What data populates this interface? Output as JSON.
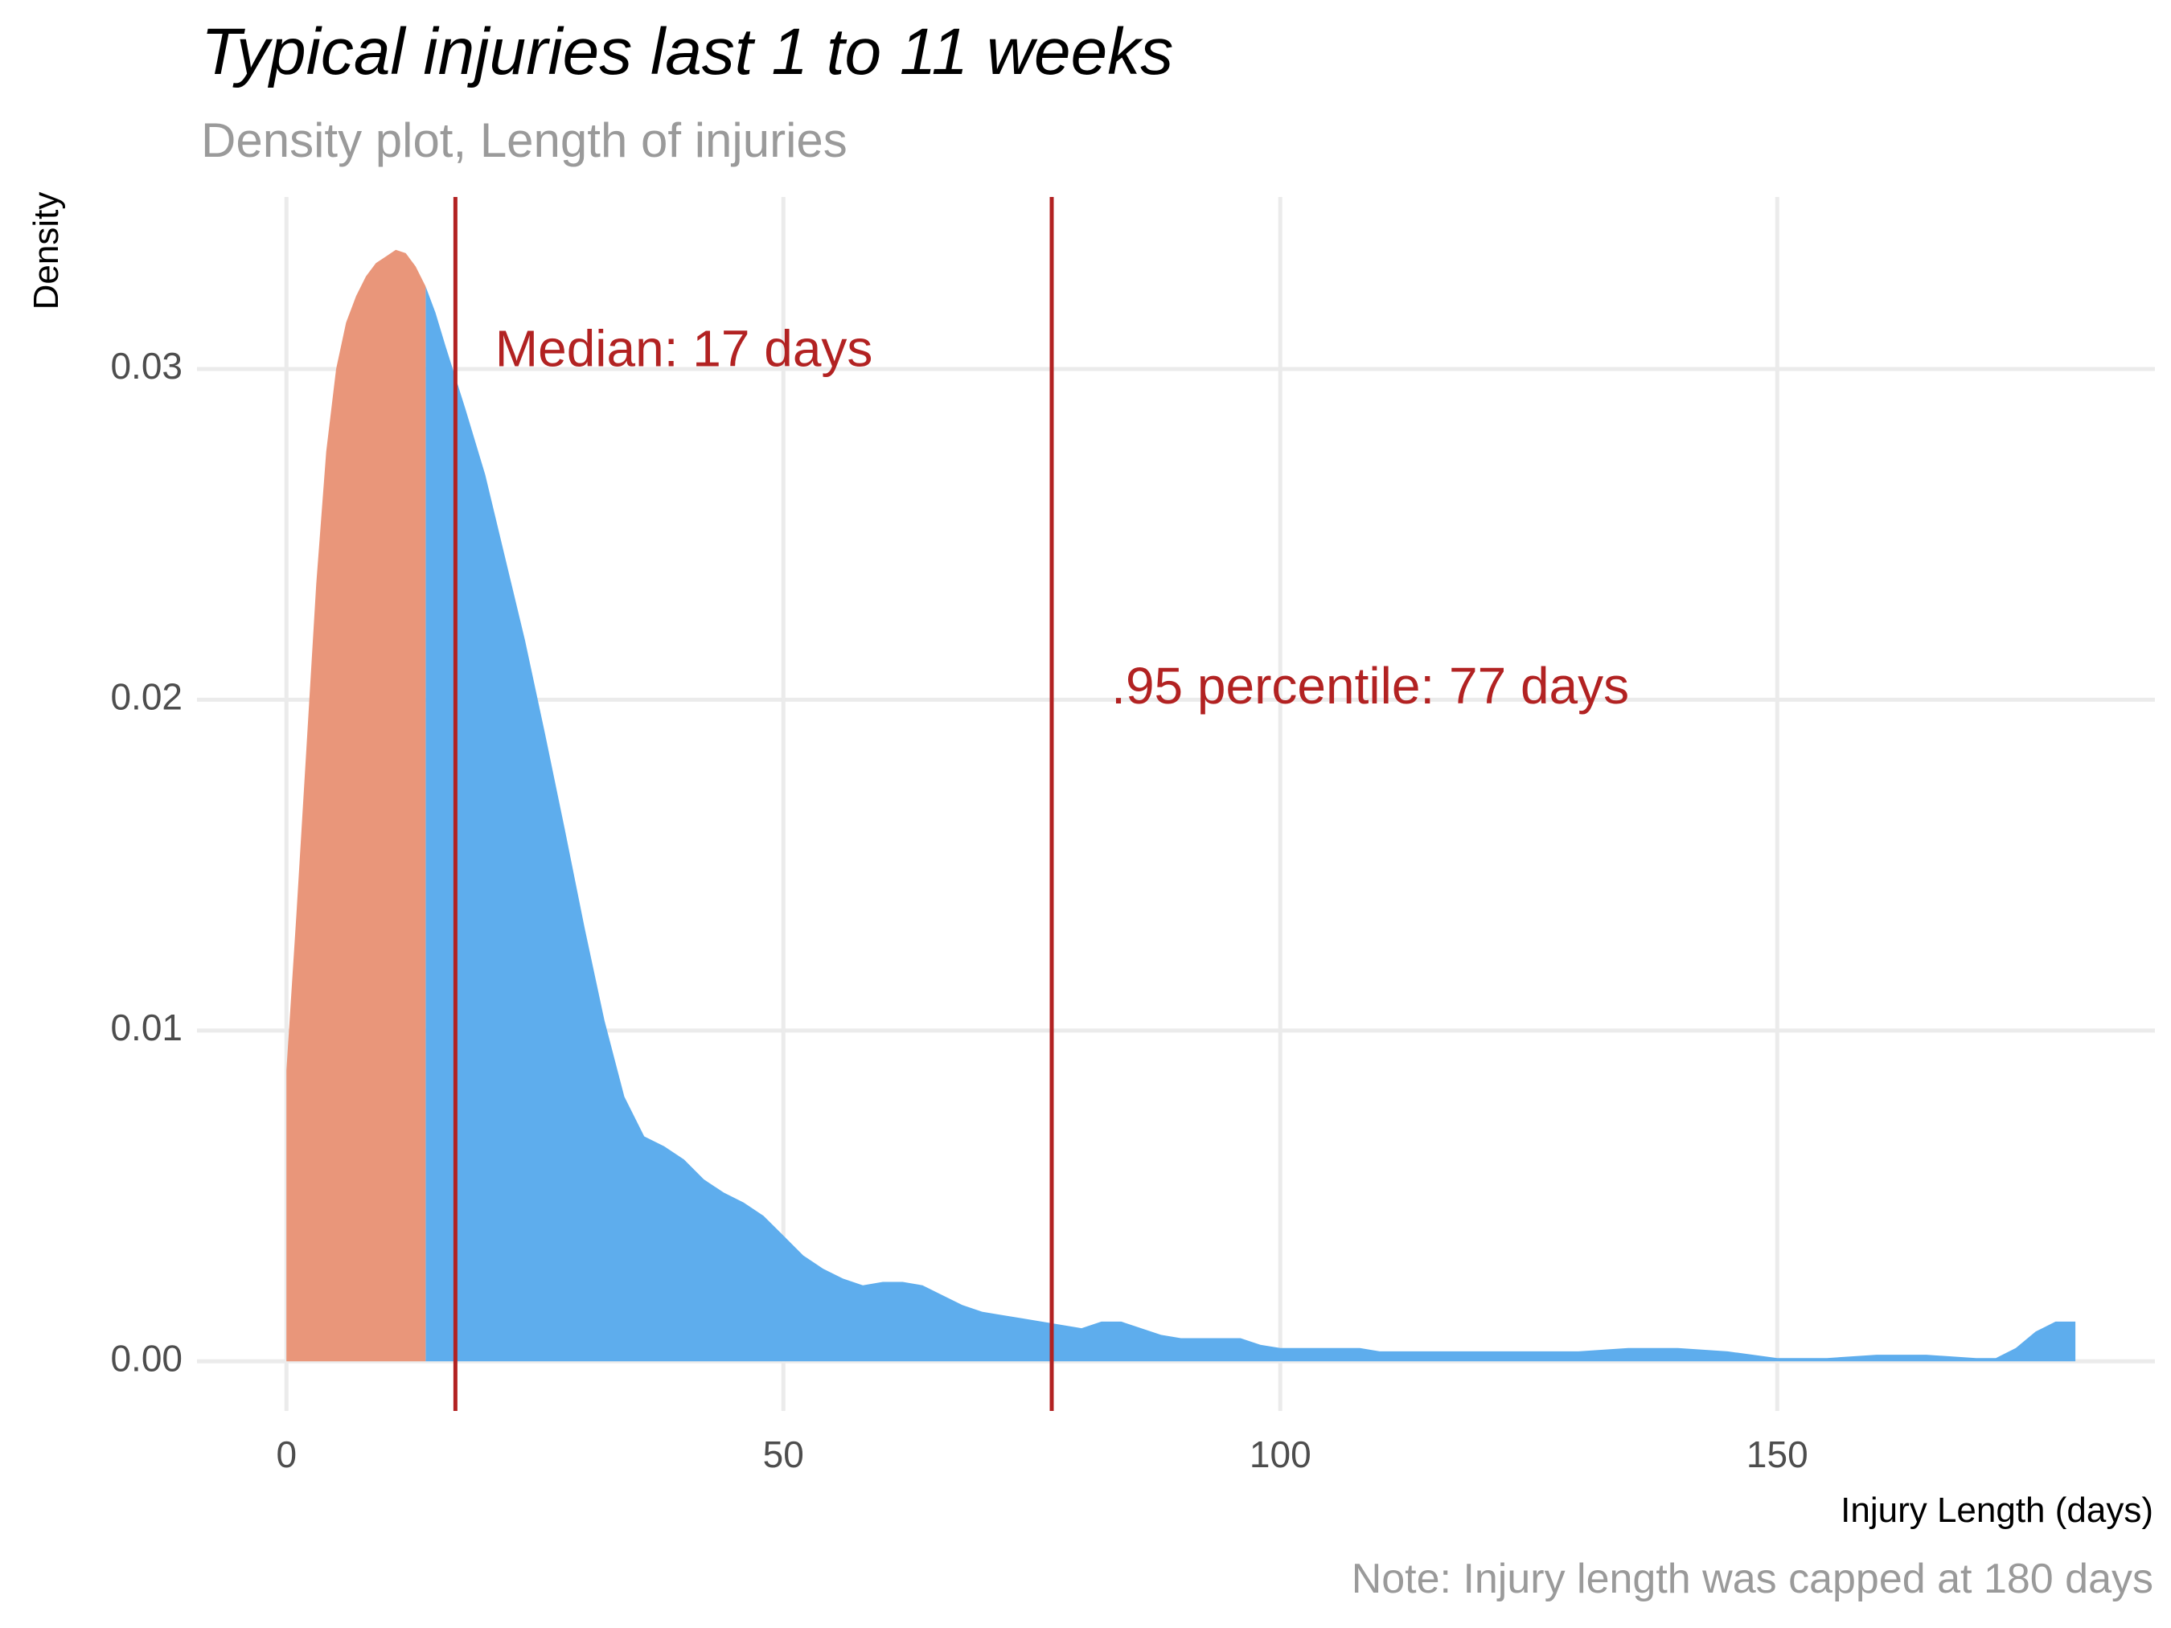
{
  "chart_data": {
    "type": "area",
    "title": "Typical injuries last 1 to 11 weeks",
    "subtitle": "Density plot, Length of injuries",
    "caption": "Note: Injury length was capped at 180 days",
    "xlabel": "Injury Length (days)",
    "ylabel": "Density",
    "xlim": [
      -9,
      188
    ],
    "ylim": [
      -0.0015,
      0.0352
    ],
    "x_ticks": [
      0,
      50,
      100,
      150
    ],
    "y_ticks": [
      0.0,
      0.01,
      0.02,
      0.03
    ],
    "x_tick_labels": [
      "0",
      "50",
      "100",
      "150"
    ],
    "y_tick_labels": [
      "0.00",
      "0.01",
      "0.02",
      "0.03"
    ],
    "grid": true,
    "legend": "none",
    "colors": {
      "highlight_fill": "#E9967A",
      "main_fill": "#5EADED",
      "reference_line": "#B22222",
      "annotation_text": "#B22222",
      "grid": "#EBEBEB"
    },
    "highlight_range": [
      0,
      14
    ],
    "density_curve": {
      "x": [
        0,
        1,
        2,
        3,
        4,
        5,
        6,
        7,
        8,
        9,
        10,
        11,
        12,
        13,
        14,
        15,
        16,
        18,
        20,
        22,
        24,
        26,
        28,
        30,
        32,
        34,
        36,
        38,
        40,
        42,
        44,
        46,
        48,
        50,
        52,
        54,
        56,
        58,
        60,
        62,
        64,
        66,
        68,
        70,
        72,
        74,
        76,
        78,
        80,
        82,
        84,
        86,
        88,
        90,
        92,
        94,
        96,
        98,
        100,
        102,
        104,
        106,
        108,
        110,
        115,
        120,
        125,
        130,
        135,
        140,
        145,
        150,
        155,
        160,
        165,
        170,
        172,
        174,
        176,
        178,
        180
      ],
      "y": [
        0.0088,
        0.0135,
        0.0185,
        0.0235,
        0.0275,
        0.03,
        0.0314,
        0.0322,
        0.0328,
        0.0332,
        0.0334,
        0.0336,
        0.0335,
        0.0331,
        0.0325,
        0.0317,
        0.0307,
        0.0288,
        0.0268,
        0.0243,
        0.0218,
        0.019,
        0.0161,
        0.0131,
        0.0103,
        0.008,
        0.0068,
        0.0065,
        0.0061,
        0.0055,
        0.0051,
        0.0048,
        0.0044,
        0.0038,
        0.0032,
        0.0028,
        0.0025,
        0.0023,
        0.0024,
        0.0024,
        0.0023,
        0.002,
        0.0017,
        0.0015,
        0.0014,
        0.0013,
        0.0012,
        0.0011,
        0.001,
        0.0012,
        0.0012,
        0.001,
        0.0008,
        0.0007,
        0.0007,
        0.0007,
        0.0007,
        0.0005,
        0.0004,
        0.0004,
        0.0004,
        0.0004,
        0.0004,
        0.0003,
        0.0003,
        0.0003,
        0.0003,
        0.0003,
        0.0004,
        0.0004,
        0.0003,
        0.0001,
        0.0001,
        0.0002,
        0.0002,
        0.0001,
        0.0001,
        0.0004,
        0.0009,
        0.0012,
        0.0012
      ]
    },
    "reference_lines": [
      {
        "x": 17,
        "label": "Median: 17 days",
        "label_x": 21,
        "label_y": 0.0305
      },
      {
        "x": 77,
        "label": ".95 percentile: 77 days",
        "label_x": 83,
        "label_y": 0.0203
      }
    ]
  }
}
